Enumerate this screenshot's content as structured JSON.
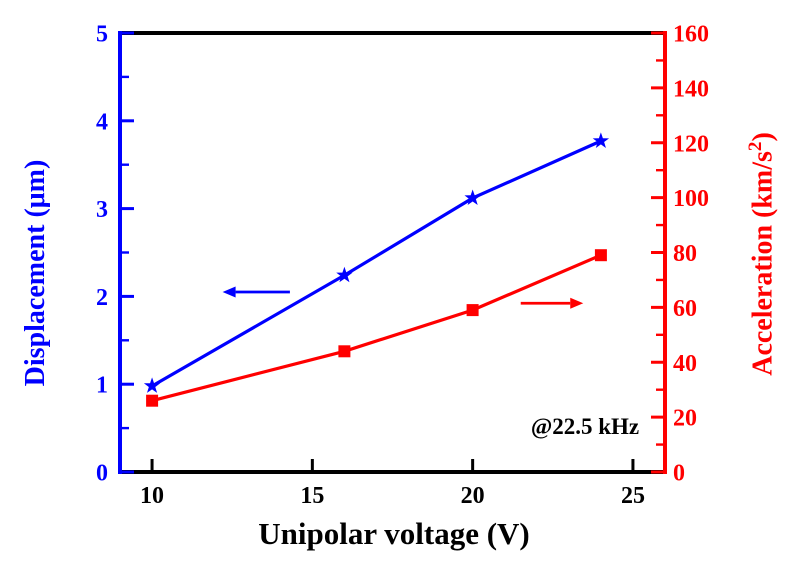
{
  "figure": {
    "background": "#ffffff",
    "frame_color": "#000000"
  },
  "chart_data": {
    "type": "line",
    "title": "",
    "xlabel": "Unipolar voltage (V)",
    "annotation": "@22.5 kHz",
    "x": [
      10,
      16,
      20,
      24
    ],
    "xlim": [
      9,
      26
    ],
    "xticks": [
      10,
      15,
      20,
      25
    ],
    "grid": false,
    "legend": "none",
    "series": [
      {
        "name": "displacement",
        "axis": "left",
        "color": "#0000ff",
        "marker": "star",
        "values": [
          0.98,
          2.24,
          3.12,
          3.77
        ]
      },
      {
        "name": "acceleration",
        "axis": "right",
        "color": "#ff0000",
        "marker": "square",
        "values": [
          26,
          44,
          59,
          79
        ]
      }
    ],
    "left_axis": {
      "label": "Displacement (μm)",
      "color": "#0000ff",
      "lim": [
        0,
        5
      ],
      "major_ticks": [
        0,
        1,
        2,
        3,
        4,
        5
      ],
      "minor_step": 0.5
    },
    "right_axis": {
      "label_pre": "Acceleration (km/s",
      "label_sup": "2",
      "label_post": ")",
      "color": "#ff0000",
      "lim": [
        0,
        160
      ],
      "major_ticks": [
        0,
        20,
        40,
        60,
        80,
        100,
        120,
        140,
        160
      ],
      "minor_step": 10
    },
    "arrows": [
      {
        "name": "displacement-axis-arrow",
        "color": "#0000ff",
        "axis": "left",
        "y_value": 2.05,
        "x_from": 14.3,
        "x_to": 12.2
      },
      {
        "name": "acceleration-axis-arrow",
        "color": "#ff0000",
        "axis": "right",
        "y_value": 61.5,
        "x_from": 21.5,
        "x_to": 23.45
      }
    ]
  }
}
